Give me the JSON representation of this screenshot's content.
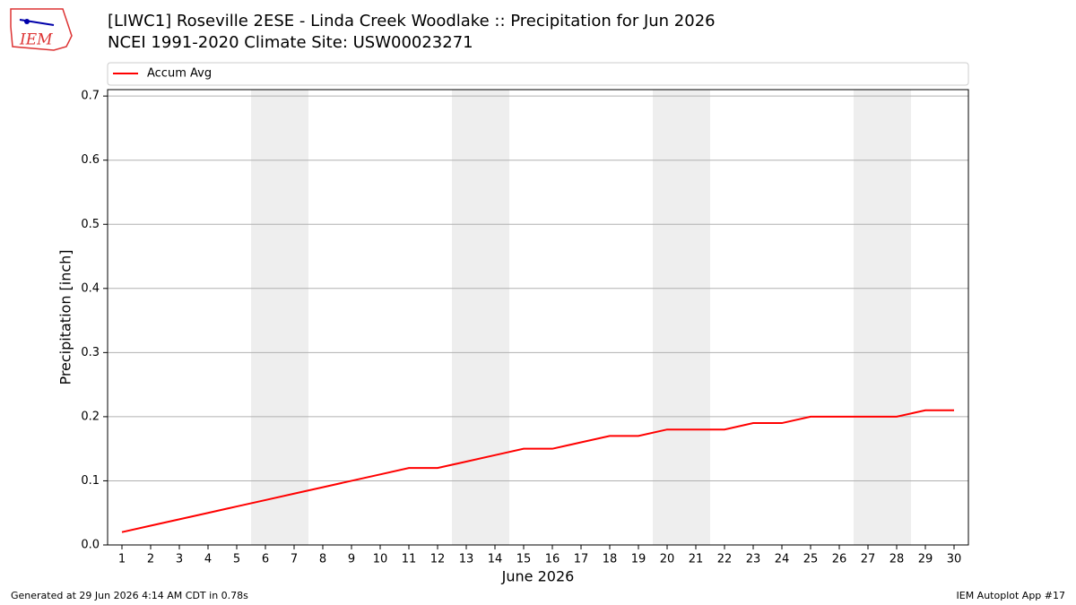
{
  "chart_data": {
    "type": "line",
    "title": "[LIWC1] Roseville 2ESE - Linda Creek Woodlake :: Precipitation for Jun 2026",
    "subtitle": "NCEI 1991-2020 Climate Site: USW00023271",
    "xlabel": "June 2026",
    "ylabel": "Precipitation [inch]",
    "logo": "IEM",
    "footer_left": "Generated at 29 Jun 2026 4:14 AM CDT in 0.78s",
    "footer_right": "IEM Autoplot App #17",
    "x": [
      1,
      2,
      3,
      4,
      5,
      6,
      7,
      8,
      9,
      10,
      11,
      12,
      13,
      14,
      15,
      16,
      17,
      18,
      19,
      20,
      21,
      22,
      23,
      24,
      25,
      26,
      27,
      28,
      29,
      30
    ],
    "series": [
      {
        "name": "Accum Avg",
        "color": "#ff0000",
        "values": [
          0.02,
          0.03,
          0.04,
          0.05,
          0.06,
          0.07,
          0.08,
          0.09,
          0.1,
          0.11,
          0.12,
          0.12,
          0.13,
          0.14,
          0.15,
          0.15,
          0.16,
          0.17,
          0.17,
          0.18,
          0.18,
          0.18,
          0.19,
          0.19,
          0.2,
          0.2,
          0.2,
          0.2,
          0.21,
          0.21
        ]
      }
    ],
    "weekend_spans": [
      [
        5.5,
        7.5
      ],
      [
        12.5,
        14.5
      ],
      [
        19.5,
        21.5
      ],
      [
        26.5,
        28.5
      ]
    ],
    "weekend_color": "#eeeeee",
    "xlim": [
      0.5,
      30.5
    ],
    "xticks": [
      1,
      2,
      3,
      4,
      5,
      6,
      7,
      8,
      9,
      10,
      11,
      12,
      13,
      14,
      15,
      16,
      17,
      18,
      19,
      20,
      21,
      22,
      23,
      24,
      25,
      26,
      27,
      28,
      29,
      30
    ],
    "ylim": [
      0,
      0.71
    ],
    "yticks": [
      {
        "value": 0,
        "label": "0.0"
      },
      0.1,
      0.2,
      0.3,
      0.4,
      0.5,
      0.6,
      0.7
    ],
    "grid": true,
    "legend": "top"
  }
}
